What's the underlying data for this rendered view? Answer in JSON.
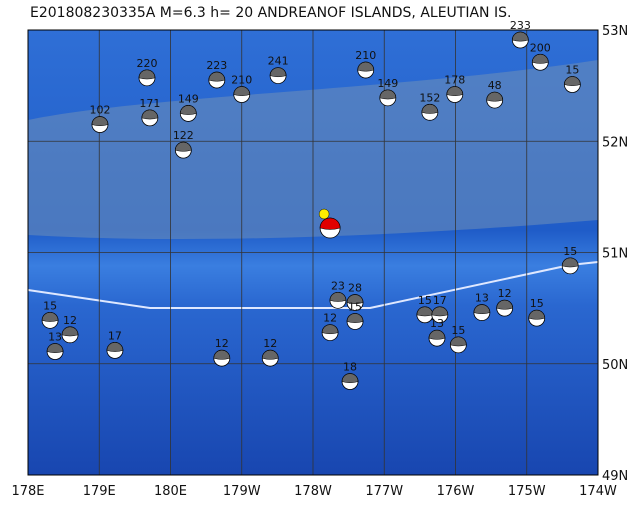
{
  "map": {
    "title": "E201808230335A  M=6.3  h= 20  ANDREANOF ISLANDS, ALEUTIAN IS.",
    "xlim": [
      178,
      186
    ],
    "ylim": [
      49,
      53
    ],
    "xticks": [
      {
        "value": 178,
        "label": "178E"
      },
      {
        "value": 179,
        "label": "179E"
      },
      {
        "value": 180,
        "label": "180E"
      },
      {
        "value": 181,
        "label": "179W"
      },
      {
        "value": 182,
        "label": "178W"
      },
      {
        "value": 183,
        "label": "177W"
      },
      {
        "value": 184,
        "label": "176W"
      },
      {
        "value": 185,
        "label": "175W"
      },
      {
        "value": 186,
        "label": "174W"
      }
    ],
    "yticks": [
      {
        "value": 49,
        "label": "49N"
      },
      {
        "value": 50,
        "label": "50N"
      },
      {
        "value": 51,
        "label": "51N"
      },
      {
        "value": 52,
        "label": "52N"
      },
      {
        "value": 53,
        "label": "53N"
      }
    ],
    "main_event": {
      "lon": 182.24,
      "lat": 51.22
    },
    "events": [
      {
        "lon": 179.67,
        "lat": 52.57,
        "depth": 220
      },
      {
        "lon": 180.65,
        "lat": 52.55,
        "depth": 223
      },
      {
        "lon": 181.51,
        "lat": 52.59,
        "depth": 241
      },
      {
        "lon": 182.74,
        "lat": 52.64,
        "depth": 210
      },
      {
        "lon": 183.05,
        "lat": 52.39,
        "depth": 149
      },
      {
        "lon": 183.99,
        "lat": 52.42,
        "depth": 178
      },
      {
        "lon": 184.91,
        "lat": 52.91,
        "depth": 233
      },
      {
        "lon": 185.19,
        "lat": 52.71,
        "depth": 200
      },
      {
        "lon": 179.01,
        "lat": 52.15,
        "depth": 102
      },
      {
        "lon": 179.71,
        "lat": 52.21,
        "depth": 171
      },
      {
        "lon": 180.25,
        "lat": 52.25,
        "depth": 149
      },
      {
        "lon": 180.18,
        "lat": 51.92,
        "depth": 122
      },
      {
        "lon": 181.0,
        "lat": 52.42,
        "depth": 210
      },
      {
        "lon": 183.64,
        "lat": 52.26,
        "depth": 152
      },
      {
        "lon": 184.55,
        "lat": 52.37,
        "depth": 48
      },
      {
        "lon": 185.64,
        "lat": 52.51,
        "depth": 15
      },
      {
        "lon": 185.61,
        "lat": 50.88,
        "depth": 15
      },
      {
        "lon": 182.35,
        "lat": 50.57,
        "depth": 23
      },
      {
        "lon": 182.59,
        "lat": 50.55,
        "depth": 28
      },
      {
        "lon": 182.59,
        "lat": 50.38,
        "depth": 15
      },
      {
        "lon": 178.31,
        "lat": 50.39,
        "depth": 15
      },
      {
        "lon": 178.59,
        "lat": 50.26,
        "depth": 12
      },
      {
        "lon": 178.38,
        "lat": 50.11,
        "depth": 13
      },
      {
        "lon": 179.22,
        "lat": 50.12,
        "depth": 17
      },
      {
        "lon": 180.72,
        "lat": 50.05,
        "depth": 12
      },
      {
        "lon": 181.4,
        "lat": 50.05,
        "depth": 12
      },
      {
        "lon": 182.52,
        "lat": 49.84,
        "depth": 18
      },
      {
        "lon": 183.57,
        "lat": 50.44,
        "depth": 15
      },
      {
        "lon": 183.78,
        "lat": 50.44,
        "depth": 17
      },
      {
        "lon": 184.37,
        "lat": 50.46,
        "depth": 13
      },
      {
        "lon": 184.69,
        "lat": 50.5,
        "depth": 12
      },
      {
        "lon": 185.14,
        "lat": 50.41,
        "depth": 15
      },
      {
        "lon": 184.04,
        "lat": 50.17,
        "depth": 15
      },
      {
        "lon": 182.24,
        "lat": 50.28,
        "depth": 12
      },
      {
        "lon": 183.74,
        "lat": 50.23,
        "depth": 13
      }
    ]
  }
}
